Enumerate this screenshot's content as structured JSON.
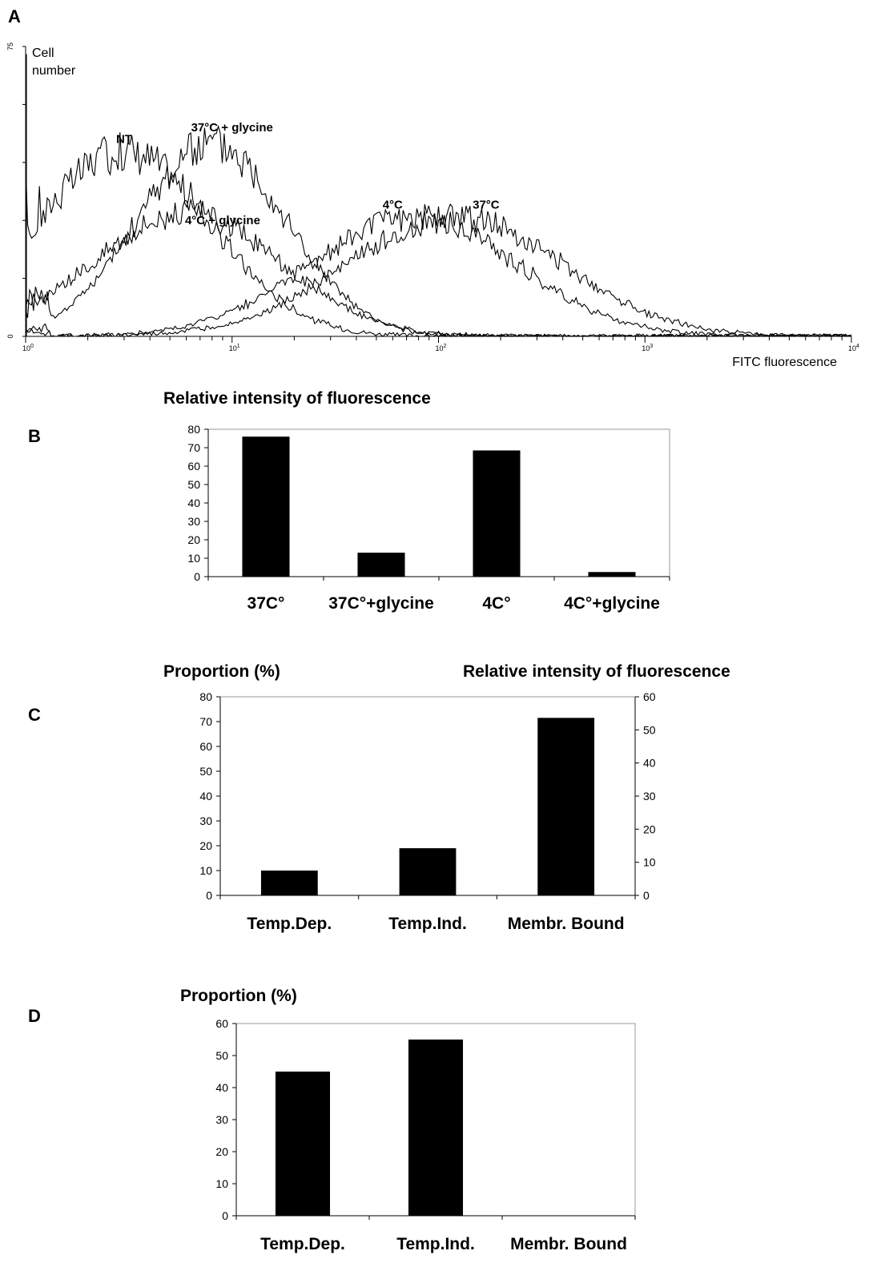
{
  "panels": {
    "a": "A",
    "b": "B",
    "c": "C",
    "d": "D"
  },
  "chart_data": [
    {
      "panel": "A",
      "type": "line",
      "ylabel_line1": "Cell",
      "ylabel_line2": "number",
      "xlabel": "FITC fluorescence",
      "x_scale": "log",
      "xlim": [
        1,
        10000
      ],
      "ylim": [
        0,
        75
      ],
      "y_tick_labels": [
        "0",
        "75"
      ],
      "x_ticks": [
        {
          "value": 1,
          "base": "10",
          "exp": "0"
        },
        {
          "value": 10,
          "base": "10",
          "exp": "1"
        },
        {
          "value": 100,
          "base": "10",
          "exp": "2"
        },
        {
          "value": 1000,
          "base": "10",
          "exp": "3"
        },
        {
          "value": 10000,
          "base": "10",
          "exp": "4"
        }
      ],
      "series": [
        {
          "name": "NT",
          "peak_x": 3,
          "peak_y": 48,
          "width_decades": 0.42,
          "start_y": 30
        },
        {
          "name": "37°C + glycine",
          "peak_x": 8,
          "peak_y": 50,
          "width_decades": 0.36,
          "start_y": 10
        },
        {
          "name": "4°C + glycine",
          "peak_x": 6,
          "peak_y": 32,
          "width_decades": 0.45,
          "start_y": 8
        },
        {
          "name": "4°C",
          "peak_x": 75,
          "peak_y": 31,
          "width_decades": 0.5,
          "start_y": 2
        },
        {
          "name": "37°C",
          "peak_x": 120,
          "peak_y": 31,
          "width_decades": 0.52,
          "start_y": 1
        }
      ],
      "annotations": [
        {
          "text": "NT",
          "x": 3,
          "y": 50
        },
        {
          "text": "37°C + glycine",
          "x": 10,
          "y": 53
        },
        {
          "text": "4°C + glycine",
          "x": 9,
          "y": 29
        },
        {
          "text": "4°C",
          "x": 60,
          "y": 33
        },
        {
          "text": "37°C",
          "x": 170,
          "y": 33
        }
      ]
    },
    {
      "panel": "B",
      "type": "bar",
      "title": "Relative intensity of fluorescence",
      "categories": [
        "37C°",
        "37C°+glycine",
        "4C°",
        "4C°+glycine"
      ],
      "values": [
        76,
        13,
        68.5,
        2.5
      ],
      "ylim": [
        0,
        80
      ],
      "yticks": [
        0,
        10,
        20,
        30,
        40,
        50,
        60,
        70,
        80
      ]
    },
    {
      "panel": "C",
      "type": "bar",
      "title_left": "Proportion (%)",
      "title_right": "Relative intensity of fluorescence",
      "categories": [
        "Temp.Dep.",
        "Temp.Ind.",
        "Membr. Bound"
      ],
      "values": [
        10,
        19,
        71.5
      ],
      "ylim": [
        0,
        80
      ],
      "yticks": [
        0,
        10,
        20,
        30,
        40,
        50,
        60,
        70,
        80
      ],
      "y2lim": [
        0,
        60
      ],
      "y2ticks": [
        0,
        10,
        20,
        30,
        40,
        50,
        60
      ]
    },
    {
      "panel": "D",
      "type": "bar",
      "title": "Proportion (%)",
      "categories": [
        "Temp.Dep.",
        "Temp.Ind.",
        "Membr. Bound"
      ],
      "values": [
        45,
        55,
        0
      ],
      "ylim": [
        0,
        60
      ],
      "yticks": [
        0,
        10,
        20,
        30,
        40,
        50,
        60
      ]
    }
  ]
}
